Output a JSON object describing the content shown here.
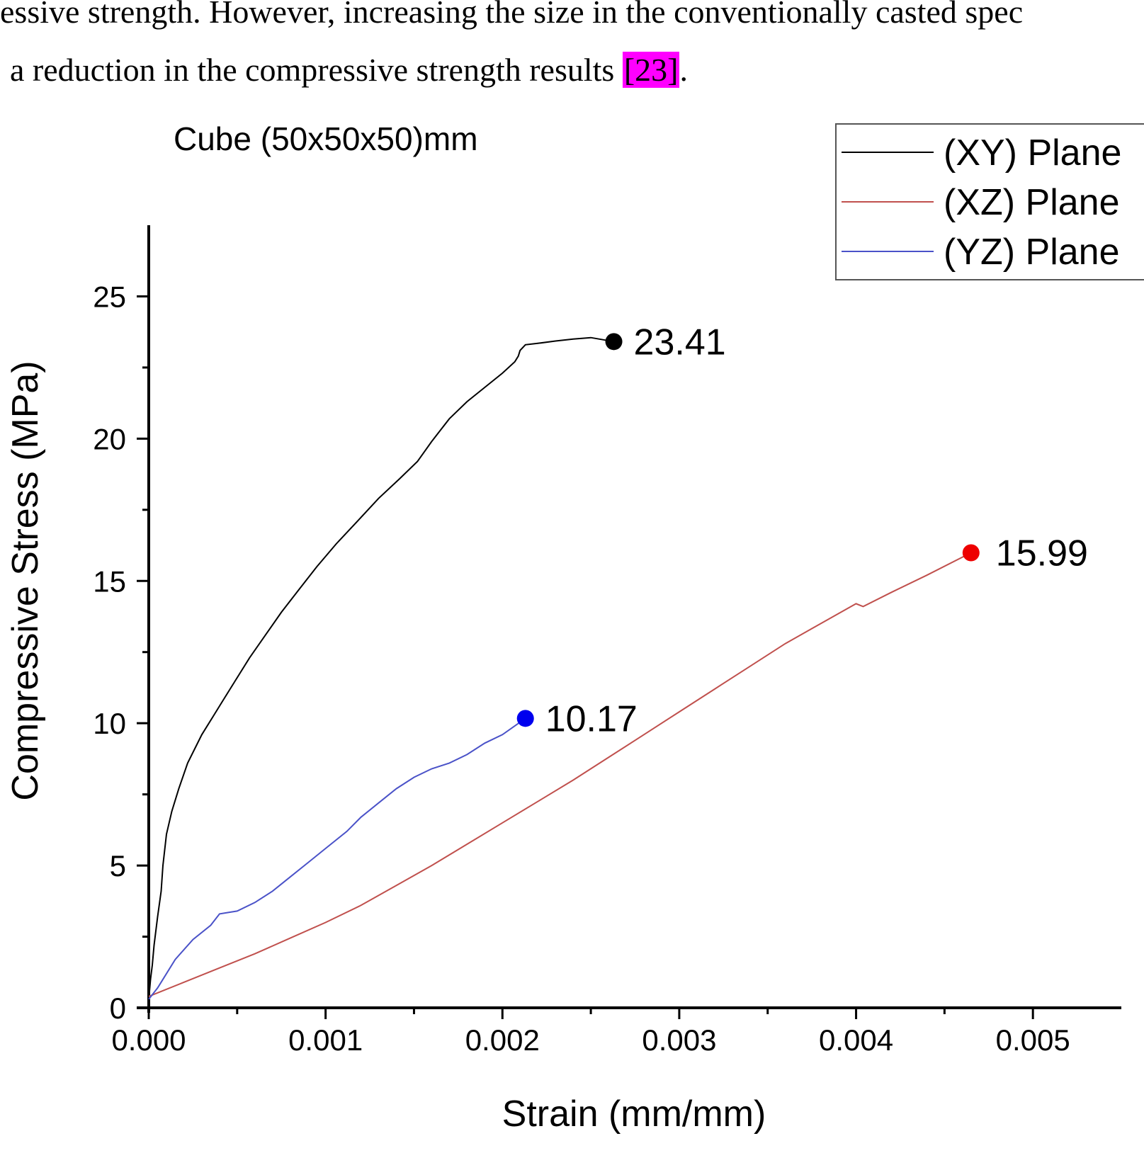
{
  "text": {
    "line1": "essive strength. However, increasing the size in the conventionally casted spec",
    "line2_prefix": "a reduction in the compressive strength results ",
    "citation": "[23]",
    "line2_suffix": "."
  },
  "chart_data": {
    "type": "line",
    "title": "Cube (50x50x50)mm",
    "xlabel": "Strain (mm/mm)",
    "ylabel": "Compressive Stress (MPa)",
    "xlim": [
      0,
      0.0055
    ],
    "ylim": [
      0,
      27.5
    ],
    "x_ticks": [
      "0.000",
      "0.001",
      "0.002",
      "0.003",
      "0.004",
      "0.005"
    ],
    "x_tick_values": [
      0,
      0.001,
      0.002,
      0.003,
      0.004,
      0.005
    ],
    "y_ticks": [
      "0",
      "5",
      "10",
      "15",
      "20",
      "25"
    ],
    "y_tick_values": [
      0,
      5,
      10,
      15,
      20,
      25
    ],
    "grid": false,
    "legend_position": "top-right",
    "series": [
      {
        "name": "(XY) Plane",
        "color": "#000000",
        "peak_label": "23.41",
        "peak": [
          0.00263,
          23.41
        ],
        "x": [
          0,
          1e-05,
          2e-05,
          3e-05,
          5e-05,
          7e-05,
          8e-05,
          0.0001,
          0.00013,
          0.00017,
          0.00022,
          0.0003,
          0.00036,
          0.00042,
          0.00049,
          0.00057,
          0.00066,
          0.00075,
          0.00085,
          0.00095,
          0.00106,
          0.00118,
          0.0013,
          0.00142,
          0.00152,
          0.0016,
          0.00165,
          0.0017,
          0.0018,
          0.0019,
          0.002,
          0.00207,
          0.00209,
          0.0021,
          0.00213,
          0.0022,
          0.0023,
          0.0024,
          0.0025,
          0.00263
        ],
        "y": [
          0.3,
          1.0,
          1.5,
          2.2,
          3.2,
          4.1,
          5.0,
          6.1,
          6.9,
          7.7,
          8.6,
          9.6,
          10.2,
          10.8,
          11.5,
          12.3,
          13.1,
          13.9,
          14.7,
          15.5,
          16.3,
          17.1,
          17.9,
          18.6,
          19.2,
          19.9,
          20.3,
          20.7,
          21.3,
          21.8,
          22.3,
          22.7,
          22.9,
          23.1,
          23.3,
          23.35,
          23.43,
          23.5,
          23.55,
          23.41
        ]
      },
      {
        "name": "(XZ) Plane",
        "color": "#c0504d",
        "peak_label": "15.99",
        "peak": [
          0.00465,
          15.99
        ],
        "x": [
          0,
          0.0002,
          0.0004,
          0.0006,
          0.0008,
          0.001,
          0.0012,
          0.0014,
          0.0016,
          0.0018,
          0.002,
          0.0022,
          0.0024,
          0.0026,
          0.0028,
          0.003,
          0.0032,
          0.0034,
          0.0036,
          0.0038,
          0.004,
          0.00404,
          0.0042,
          0.0044,
          0.00465
        ],
        "y": [
          0.4,
          0.9,
          1.4,
          1.9,
          2.45,
          3.0,
          3.6,
          4.3,
          5.0,
          5.75,
          6.5,
          7.25,
          8.0,
          8.8,
          9.6,
          10.4,
          11.2,
          12.0,
          12.8,
          13.5,
          14.2,
          14.1,
          14.6,
          15.2,
          15.99
        ]
      },
      {
        "name": "(YZ) Plane",
        "color": "#4a52c8",
        "peak_label": "10.17",
        "peak": [
          0.00213,
          10.17
        ],
        "x": [
          0,
          5e-05,
          8e-05,
          0.00015,
          0.00025,
          0.00035,
          0.0004,
          0.00045,
          0.0005,
          0.0006,
          0.0007,
          0.0008,
          0.0009,
          0.001,
          0.00112,
          0.0012,
          0.0013,
          0.0014,
          0.0015,
          0.0016,
          0.0017,
          0.0018,
          0.0019,
          0.002,
          0.00213
        ],
        "y": [
          0.3,
          0.7,
          1.0,
          1.7,
          2.4,
          2.9,
          3.3,
          3.35,
          3.4,
          3.7,
          4.1,
          4.6,
          5.1,
          5.6,
          6.2,
          6.7,
          7.2,
          7.7,
          8.1,
          8.4,
          8.6,
          8.9,
          9.3,
          9.6,
          10.17
        ]
      }
    ]
  }
}
